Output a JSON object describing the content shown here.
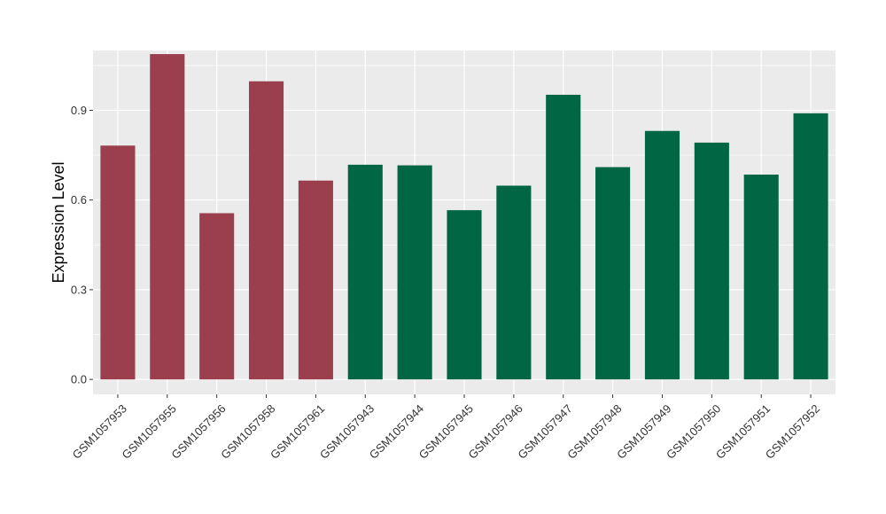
{
  "chart_data": {
    "type": "bar",
    "title": "",
    "xlabel": "",
    "ylabel": "Expression Level",
    "ylim": [
      -0.05,
      1.1
    ],
    "yticks": [
      0.0,
      0.3,
      0.6,
      0.9
    ],
    "ytick_labels": [
      "0.0",
      "0.3",
      "0.6",
      "0.9"
    ],
    "grid": true,
    "legend": "none",
    "categories": [
      "GSM1057953",
      "GSM1057955",
      "GSM1057956",
      "GSM1057958",
      "GSM1057961",
      "GSM1057943",
      "GSM1057944",
      "GSM1057945",
      "GSM1057946",
      "GSM1057947",
      "GSM1057948",
      "GSM1057949",
      "GSM1057950",
      "GSM1057951",
      "GSM1057952"
    ],
    "values": [
      0.782,
      1.088,
      0.556,
      0.997,
      0.665,
      0.718,
      0.716,
      0.566,
      0.648,
      0.952,
      0.71,
      0.831,
      0.792,
      0.685,
      0.89
    ],
    "group_colors": [
      "#9B3F4E",
      "#9B3F4E",
      "#9B3F4E",
      "#9B3F4E",
      "#9B3F4E",
      "#006644",
      "#006644",
      "#006644",
      "#006644",
      "#006644",
      "#006644",
      "#006644",
      "#006644",
      "#006644",
      "#006644"
    ],
    "panel_color": "#EBEBEB",
    "grid_color": "#FFFFFF"
  }
}
